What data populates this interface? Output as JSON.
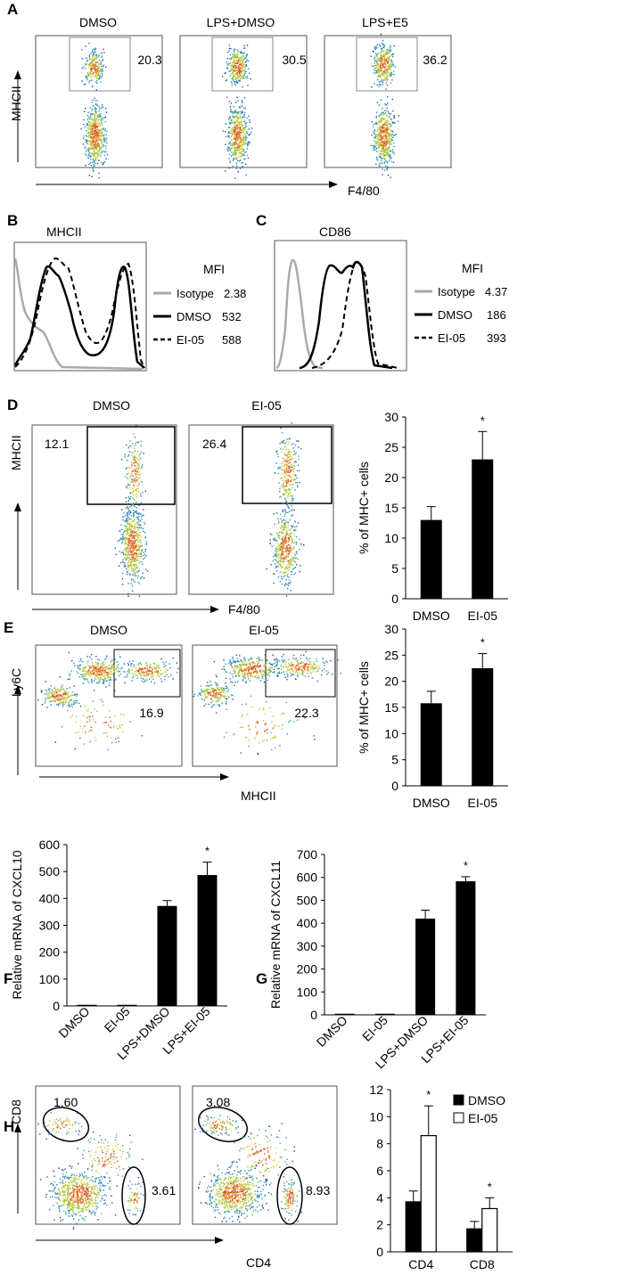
{
  "panels": {
    "A": {
      "letter": "A",
      "plots": [
        {
          "title": "DMSO",
          "gate_value": "20.3"
        },
        {
          "title": "LPS+DMSO",
          "gate_value": "30.5"
        },
        {
          "title": "LPS+E5",
          "gate_value": "36.2"
        }
      ],
      "y_axis": "MHCII",
      "x_axis": "F4/80"
    },
    "B": {
      "letter": "B",
      "title": "MHCII",
      "legend_title": "MFI",
      "legend": [
        {
          "name": "Isotype",
          "value": "2.38",
          "style": "solid-gray"
        },
        {
          "name": "DMSO",
          "value": "532",
          "style": "solid-black"
        },
        {
          "name": "EI-05",
          "value": "588",
          "style": "dashed-black"
        }
      ]
    },
    "C": {
      "letter": "C",
      "title": "CD86",
      "legend_title": "MFI",
      "legend": [
        {
          "name": "Isotype",
          "value": "4.37",
          "style": "solid-gray"
        },
        {
          "name": "DMSO",
          "value": "186",
          "style": "solid-black"
        },
        {
          "name": "EI-05",
          "value": "393",
          "style": "dashed-black"
        }
      ]
    },
    "D": {
      "letter": "D",
      "plots": [
        {
          "title": "DMSO",
          "gate_value": "12.1"
        },
        {
          "title": "EI-05",
          "gate_value": "26.4"
        }
      ],
      "y_axis": "MHCII",
      "x_axis": "F4/80"
    },
    "E": {
      "letter": "E",
      "plots": [
        {
          "title": "DMSO",
          "gate_value": "16.9"
        },
        {
          "title": "EI-05",
          "gate_value": "22.3"
        }
      ],
      "y_axis": "Ly6C",
      "x_axis": "MHCII"
    },
    "F": {
      "letter": "F"
    },
    "G": {
      "letter": "G"
    },
    "H": {
      "letter": "H",
      "plots": [
        {
          "cd8_gate": "1.60",
          "cd4_gate": "3.61"
        },
        {
          "cd8_gate": "3.08",
          "cd4_gate": "8.93"
        }
      ],
      "y_axis": "CD8",
      "x_axis": "CD4"
    }
  },
  "chart_data": [
    {
      "id": "D-bar",
      "type": "bar",
      "categories": [
        "DMSO",
        "EI-05"
      ],
      "values": [
        13,
        23
      ],
      "errors": [
        2.2,
        4.6
      ],
      "significance": [
        "",
        "*"
      ],
      "ylabel": "% of MHC+ cells",
      "ylim": [
        0,
        30
      ],
      "yticks": [
        0,
        5,
        10,
        15,
        20,
        25,
        30
      ]
    },
    {
      "id": "E-bar",
      "type": "bar",
      "categories": [
        "DMSO",
        "EI-05"
      ],
      "values": [
        15.8,
        22.5
      ],
      "errors": [
        2.3,
        2.8
      ],
      "significance": [
        "",
        "*"
      ],
      "ylabel": "% of MHC+ cells",
      "ylim": [
        0,
        30
      ],
      "yticks": [
        0,
        5,
        10,
        15,
        20,
        25,
        30
      ]
    },
    {
      "id": "F-bar",
      "type": "bar",
      "categories": [
        "DMSO",
        "EI-05",
        "LPS+DMSO",
        "LPS+EI-05"
      ],
      "values": [
        0,
        0,
        372,
        487
      ],
      "errors": [
        0,
        0,
        20,
        48
      ],
      "significance": [
        "",
        "",
        "",
        "*"
      ],
      "ylabel": "Relative mRNA of CXCL10",
      "ylim": [
        0,
        600
      ],
      "yticks": [
        0,
        100,
        200,
        300,
        400,
        500,
        600
      ]
    },
    {
      "id": "G-bar",
      "type": "bar",
      "categories": [
        "DMSO",
        "EI-05",
        "LPS+DMSO",
        "LPS+EI-05"
      ],
      "values": [
        0,
        0,
        420,
        583
      ],
      "errors": [
        0,
        0,
        37,
        20
      ],
      "significance": [
        "",
        "",
        "",
        "*"
      ],
      "ylabel": "Relative mRNA of CXCL11",
      "ylim": [
        0,
        700
      ],
      "yticks": [
        0,
        100,
        200,
        300,
        400,
        500,
        600,
        700
      ]
    },
    {
      "id": "H-bar",
      "type": "bar",
      "categories": [
        "CD4",
        "CD8"
      ],
      "series": [
        {
          "name": "DMSO",
          "values": [
            3.7,
            1.7
          ],
          "errors": [
            0.8,
            0.55
          ],
          "color": "#000000"
        },
        {
          "name": "EI-05",
          "values": [
            8.6,
            3.2
          ],
          "errors": [
            2.2,
            0.8
          ],
          "color": "#ffffff"
        }
      ],
      "significance": [
        "*",
        "*"
      ],
      "ylim": [
        0,
        12
      ],
      "yticks": [
        0,
        2,
        4,
        6,
        8,
        10,
        12
      ],
      "legend_position": "top-right"
    }
  ]
}
